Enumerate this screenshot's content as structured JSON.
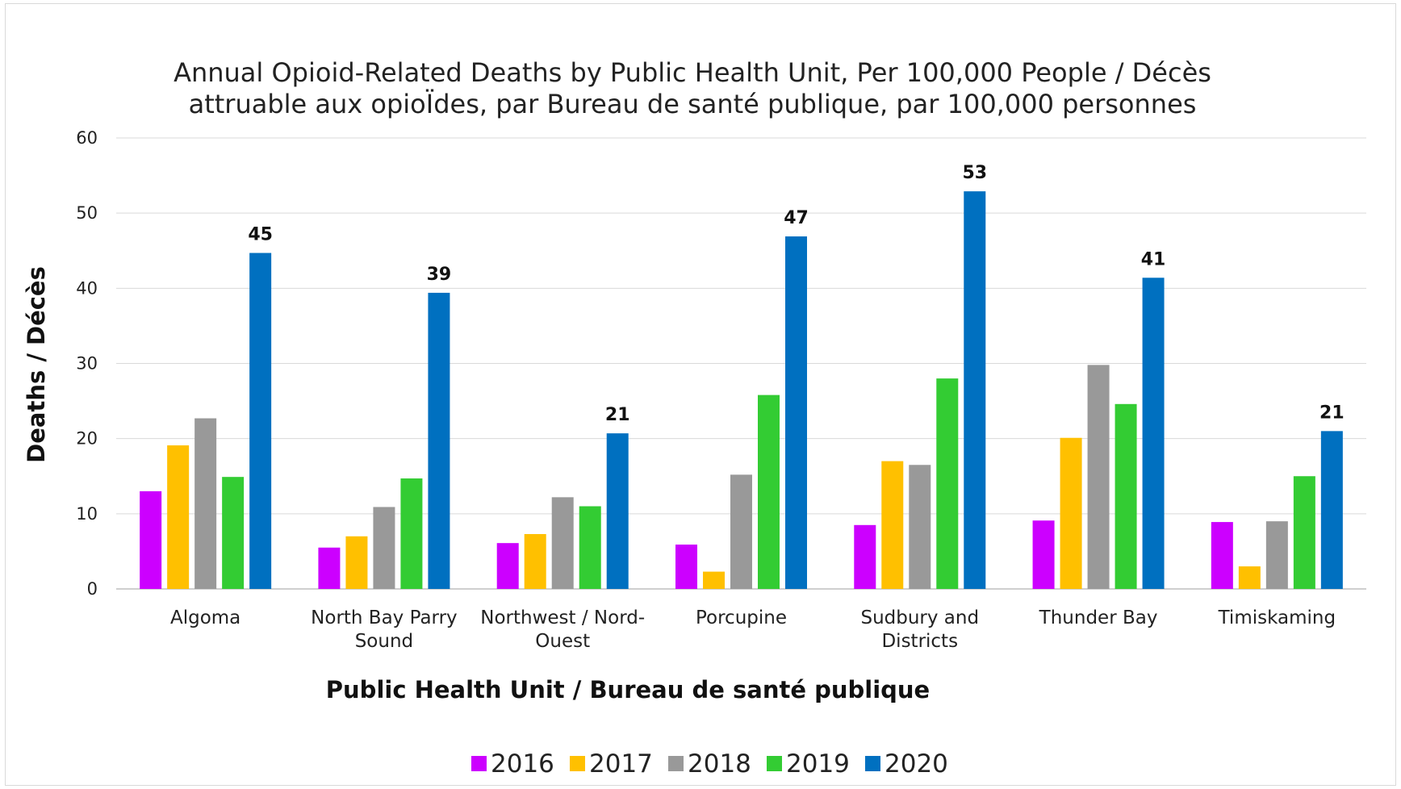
{
  "chart_data": {
    "type": "bar",
    "title_lines": [
      "Annual Opioid-Related Deaths by Public Health Unit, Per 100,000 People / Décès",
      "attruable aux opioÏdes, par Bureau de santé publique, par 100,000 personnes"
    ],
    "xlabel": "Public Health Unit / Bureau de santé publique",
    "ylabel": "Deaths / Décès",
    "ylim": [
      0,
      60
    ],
    "yticks": [
      0,
      10,
      20,
      30,
      40,
      50,
      60
    ],
    "grid": true,
    "legend_position": "bottom",
    "categories": [
      [
        "Algoma"
      ],
      [
        "North Bay Parry",
        "Sound"
      ],
      [
        "Northwest / Nord-",
        "Ouest"
      ],
      [
        "Porcupine"
      ],
      [
        "Sudbury and",
        "Districts"
      ],
      [
        "Thunder Bay"
      ],
      [
        "Timiskaming"
      ]
    ],
    "series": [
      {
        "name": "2016",
        "color": "#cc00ff",
        "values": [
          13.0,
          5.5,
          6.1,
          5.9,
          8.5,
          9.1,
          8.9
        ]
      },
      {
        "name": "2017",
        "color": "#ffc000",
        "values": [
          19.1,
          7.0,
          7.3,
          2.3,
          17.0,
          20.1,
          3.0
        ]
      },
      {
        "name": "2018",
        "color": "#999999",
        "values": [
          22.7,
          10.9,
          12.2,
          15.2,
          16.5,
          29.8,
          9.0
        ]
      },
      {
        "name": "2019",
        "color": "#33cc33",
        "values": [
          14.9,
          14.7,
          11.0,
          25.8,
          28.0,
          24.6,
          15.0
        ]
      },
      {
        "name": "2020",
        "color": "#0070c0",
        "values": [
          44.7,
          39.4,
          20.7,
          46.9,
          52.9,
          41.4,
          21.0
        ]
      }
    ],
    "data_labels": {
      "series": "2020",
      "values": [
        "45",
        "39",
        "21",
        "47",
        "53",
        "41",
        "21"
      ]
    }
  }
}
